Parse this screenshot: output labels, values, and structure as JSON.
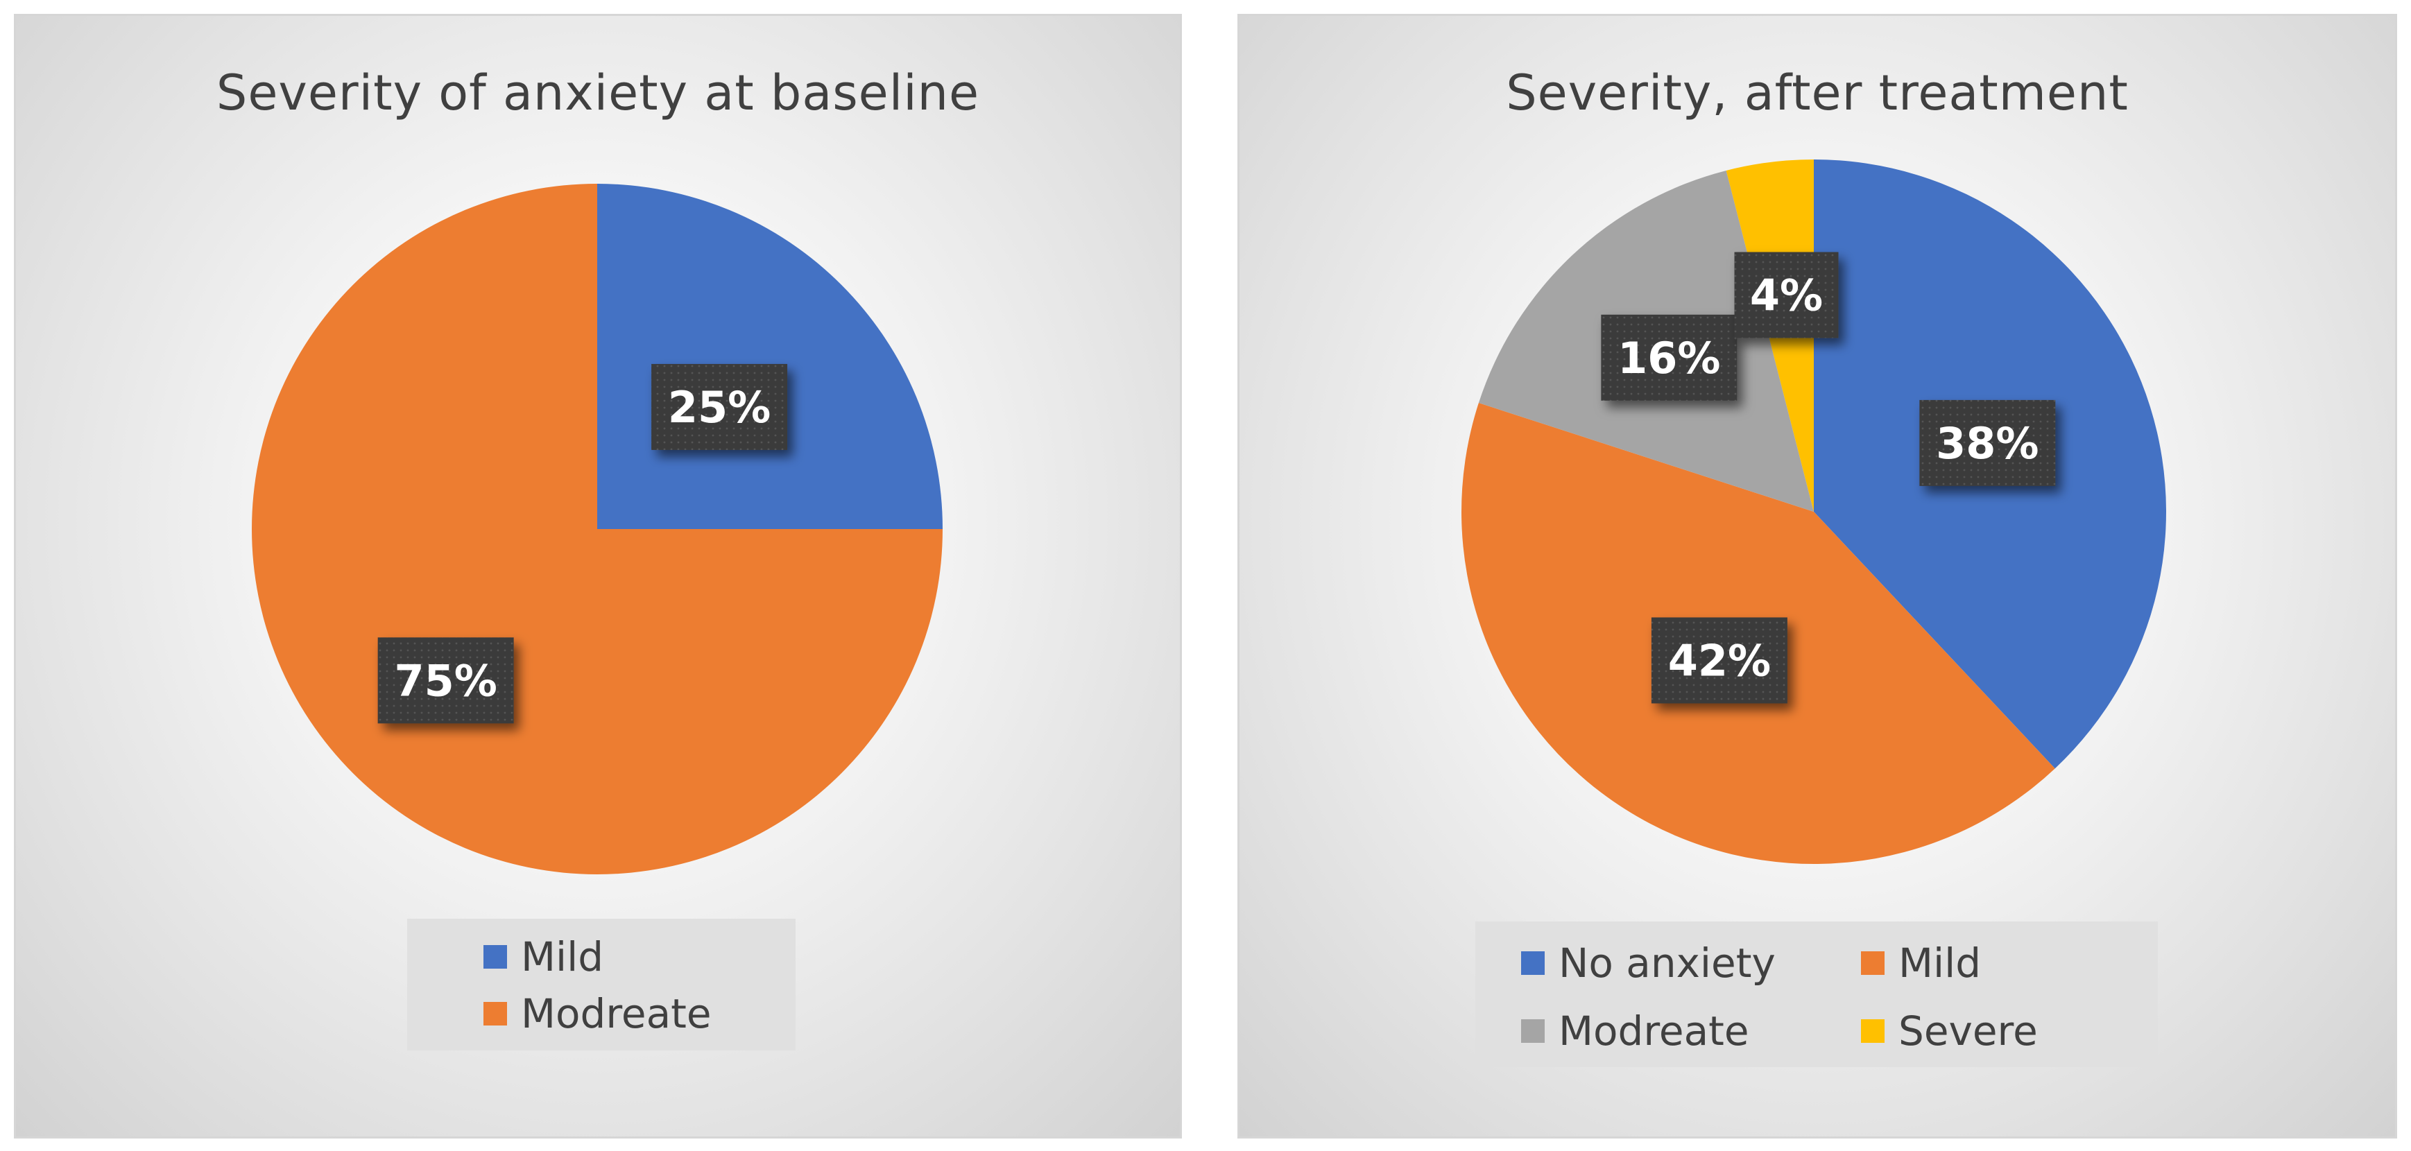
{
  "chart_data": [
    {
      "type": "pie",
      "title": "Severity of anxiety at baseline",
      "categories": [
        "Mild",
        "Modreate"
      ],
      "values": [
        25,
        75
      ],
      "labels": [
        "25%",
        "75%"
      ],
      "colors": [
        "#4472C4",
        "#ED7D31"
      ],
      "legend": [
        "Mild",
        "Modreate"
      ],
      "legend_position": "bottom"
    },
    {
      "type": "pie",
      "title": "Severity, after treatment",
      "categories": [
        "No anxiety",
        "Mild",
        "Modreate",
        "Severe"
      ],
      "values": [
        38,
        42,
        16,
        4
      ],
      "labels": [
        "38%",
        "42%",
        "16%",
        "4%"
      ],
      "colors": [
        "#4472C4",
        "#ED7D31",
        "#A5A5A5",
        "#FFC000"
      ],
      "legend": [
        "No anxiety",
        "Mild",
        "Modreate",
        "Severe"
      ],
      "legend_position": "bottom"
    }
  ]
}
